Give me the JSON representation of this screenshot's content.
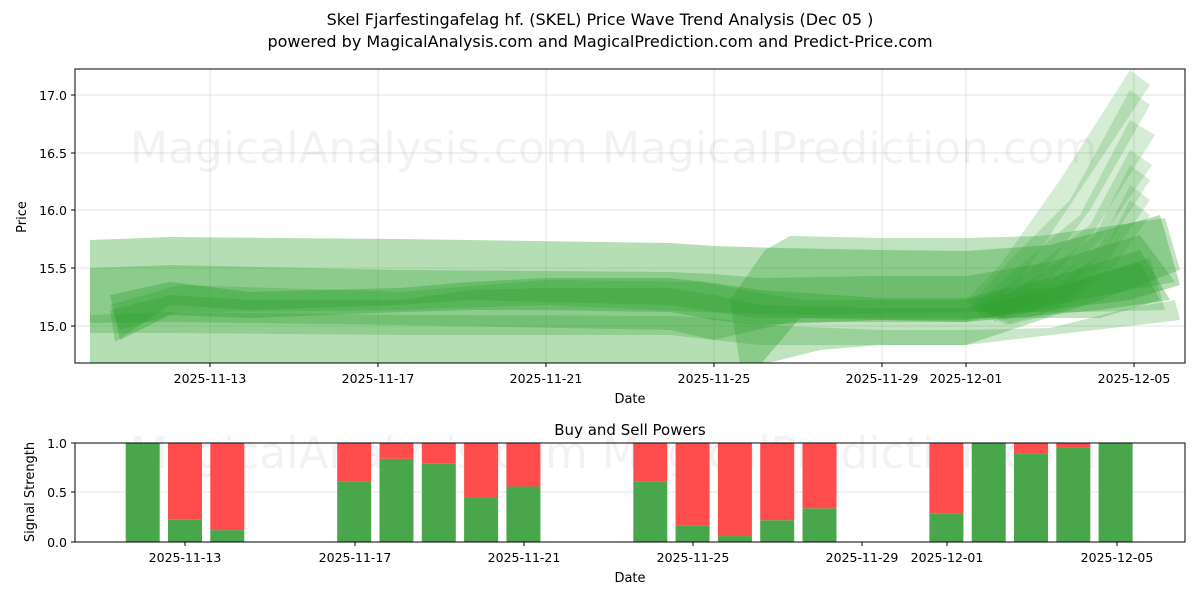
{
  "header": {
    "title": "Skel Fjarfestingafelag hf. (SKEL) Price Wave Trend Analysis (Dec 05 )",
    "subtitle": "powered by MagicalAnalysis.com and MagicalPrediction.com and Predict-Price.com"
  },
  "watermarks": [
    "MagicalAnalysis.com",
    "MagicalPrediction.com"
  ],
  "colors": {
    "band": "#2ca02c",
    "buy": "#4aa64a",
    "sell": "#ff4d4d",
    "grid": "#e0e0e0"
  },
  "chart_data": [
    {
      "type": "area",
      "title": "",
      "xlabel": "Date",
      "ylabel": "Price",
      "ylim": [
        14.68,
        17.22
      ],
      "grid": true,
      "x_ticks": [
        "2025-11-13",
        "2025-11-17",
        "2025-11-21",
        "2025-11-25",
        "2025-11-29",
        "2025-12-01",
        "2025-12-05"
      ],
      "y_ticks": [
        "15.0",
        "15.5",
        "16.0",
        "16.5",
        "17.0"
      ],
      "x": [
        "2025-11-11",
        "2025-11-12",
        "2025-11-13",
        "2025-11-14",
        "2025-11-17",
        "2025-11-18",
        "2025-11-19",
        "2025-11-20",
        "2025-11-21",
        "2025-11-24",
        "2025-11-25",
        "2025-11-26",
        "2025-11-27",
        "2025-11-28",
        "2025-12-01",
        "2025-12-02",
        "2025-12-03",
        "2025-12-04",
        "2025-12-05"
      ],
      "series": [
        {
          "name": "wave band center",
          "values": [
            15.05,
            15.08,
            15.08,
            15.07,
            15.1,
            15.15,
            15.2,
            15.22,
            15.22,
            15.2,
            15.15,
            15.1,
            15.1,
            15.1,
            15.15,
            15.25,
            15.35,
            15.45,
            15.55
          ]
        },
        {
          "name": "outer band upper",
          "values": [
            15.73,
            15.75,
            15.75,
            15.75,
            15.74,
            15.73,
            15.73,
            15.72,
            15.72,
            15.71,
            15.69,
            15.65,
            15.62,
            15.61,
            15.6,
            15.65,
            15.72,
            15.8,
            15.9
          ]
        },
        {
          "name": "outer band lower",
          "values": [
            14.65,
            14.65,
            14.65,
            14.65,
            14.65,
            14.65,
            14.65,
            14.65,
            14.65,
            14.65,
            14.65,
            14.65,
            14.85,
            14.85,
            14.85,
            14.9,
            15.0,
            15.15,
            15.25
          ]
        },
        {
          "name": "forecast peak",
          "values": [
            null,
            null,
            null,
            null,
            null,
            null,
            null,
            null,
            null,
            null,
            null,
            null,
            null,
            null,
            15.2,
            15.7,
            16.3,
            16.9,
            17.15
          ]
        }
      ],
      "legend": "none"
    },
    {
      "type": "bar",
      "title": "Buy and Sell Powers",
      "xlabel": "Date",
      "ylabel": "Signal Strength",
      "ylim": [
        0,
        1
      ],
      "grid": true,
      "x_ticks": [
        "2025-11-13",
        "2025-11-17",
        "2025-11-21",
        "2025-11-25",
        "2025-11-29",
        "2025-12-01",
        "2025-12-05"
      ],
      "y_ticks": [
        "0.0",
        "0.5",
        "1.0"
      ],
      "categories": [
        "2025-11-12",
        "2025-11-13",
        "2025-11-14",
        "2025-11-17",
        "2025-11-18",
        "2025-11-19",
        "2025-11-20",
        "2025-11-21",
        "2025-11-24",
        "2025-11-25",
        "2025-11-26",
        "2025-11-27",
        "2025-11-28",
        "2025-12-01",
        "2025-12-02",
        "2025-12-03",
        "2025-12-04",
        "2025-12-05"
      ],
      "series": [
        {
          "name": "Buy",
          "values": [
            1.0,
            0.23,
            0.12,
            0.61,
            0.84,
            0.79,
            0.45,
            0.56,
            0.61,
            0.17,
            0.06,
            0.22,
            0.34,
            0.29,
            1.0,
            0.89,
            0.95,
            1.0
          ]
        },
        {
          "name": "Sell",
          "values": [
            0.0,
            0.77,
            0.88,
            0.39,
            0.16,
            0.21,
            0.55,
            0.44,
            0.39,
            0.83,
            0.94,
            0.78,
            0.66,
            0.71,
            0.0,
            0.11,
            0.05,
            0.0
          ]
        }
      ],
      "stacked": true
    }
  ]
}
